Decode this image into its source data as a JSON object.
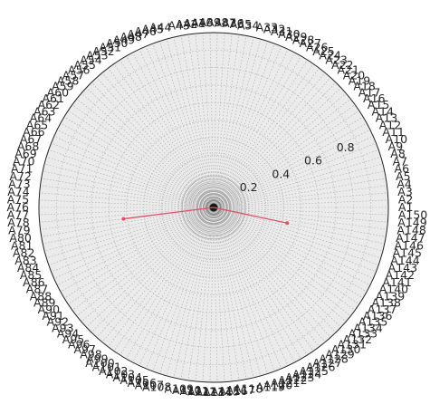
{
  "chart_data": {
    "type": "radar",
    "categories": [
      "A1",
      "A2",
      "A3",
      "A4",
      "A5",
      "A6",
      "A7",
      "A8",
      "A9",
      "A10",
      "A11",
      "A12",
      "A13",
      "A14",
      "A15",
      "A16",
      "A17",
      "A18",
      "A19",
      "A20",
      "A21",
      "A22",
      "A23",
      "A24",
      "A25",
      "A26",
      "A27",
      "A28",
      "A29",
      "A30",
      "A31",
      "A32",
      "A33",
      "A34",
      "A35",
      "A36",
      "A37",
      "A38",
      "A39",
      "A40",
      "A41",
      "A42",
      "A43",
      "A44",
      "A45",
      "A46",
      "A47",
      "A48",
      "A49",
      "A50",
      "A51",
      "A52",
      "A53",
      "A54",
      "A55",
      "A56",
      "A57",
      "A58",
      "A59",
      "A60",
      "A61",
      "A62",
      "A63",
      "A64",
      "A65",
      "A66",
      "A67",
      "A68",
      "A69",
      "A70",
      "A71",
      "A72",
      "A73",
      "A74",
      "A75",
      "A76",
      "A77",
      "A78",
      "A79",
      "A80",
      "A81",
      "A82",
      "A83",
      "A84",
      "A85",
      "A86",
      "A87",
      "A88",
      "A89",
      "A90",
      "A91",
      "A92",
      "A93",
      "A94",
      "A95",
      "A96",
      "A97",
      "A98",
      "A99",
      "A100",
      "A101",
      "A102",
      "A103",
      "A104",
      "A105",
      "A106",
      "A107",
      "A108",
      "A109",
      "A110",
      "A111",
      "A112",
      "A113",
      "A114",
      "A115",
      "A116",
      "A117",
      "A118",
      "A119",
      "A120",
      "A121",
      "A122",
      "A123",
      "A124",
      "A125",
      "A126",
      "A127",
      "A128",
      "A129",
      "A130",
      "A131",
      "A132",
      "A133",
      "A134",
      "A135",
      "A136",
      "A137",
      "A138",
      "A139",
      "A140",
      "A141",
      "A142",
      "A143",
      "A144",
      "A145",
      "A146",
      "A147",
      "A148",
      "A149",
      "A150"
    ],
    "series": [
      {
        "color": "#e2506a",
        "values": [
          0,
          0,
          0,
          0,
          0,
          0,
          0,
          0,
          0,
          0,
          0,
          0,
          0,
          0,
          0,
          0,
          0,
          0,
          0,
          0,
          0,
          0,
          0,
          0,
          0,
          0,
          0,
          0,
          0,
          0,
          0,
          0,
          0,
          0,
          0,
          0,
          0,
          0,
          0,
          0,
          0,
          0,
          0,
          0,
          0,
          0,
          0,
          0,
          0,
          0,
          0,
          0,
          0,
          0,
          0,
          0,
          0,
          0,
          0,
          0,
          0,
          0,
          0,
          0,
          0,
          0,
          0,
          0,
          0,
          0,
          0,
          0,
          0,
          0,
          0,
          0,
          0,
          0,
          0.52,
          0,
          0,
          0,
          0,
          0,
          0,
          0,
          0,
          0,
          0,
          0,
          0,
          0,
          0,
          0,
          0,
          0,
          0,
          0,
          0,
          0,
          0,
          0,
          0,
          0,
          0,
          0,
          0,
          0,
          0,
          0,
          0,
          0,
          0,
          0,
          0,
          0,
          0,
          0,
          0,
          0,
          0,
          0,
          0,
          0,
          0,
          0,
          0,
          0,
          0,
          0,
          0,
          0,
          0,
          0,
          0,
          0,
          0,
          0,
          0,
          0,
          0,
          0,
          0,
          0,
          0,
          0.43,
          0,
          0,
          0,
          0
        ]
      }
    ],
    "r_ticks": [
      0.2,
      0.4,
      0.6,
      0.8
    ],
    "r_tick_labels": [
      "0.2",
      "0.4",
      "0.6",
      "0.8"
    ],
    "rlim": [
      0,
      1
    ],
    "grid": true,
    "start_angle": "east",
    "direction": "counterclockwise"
  }
}
